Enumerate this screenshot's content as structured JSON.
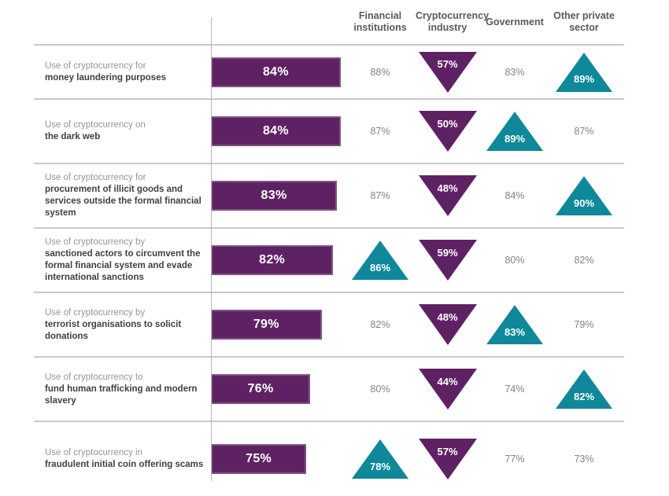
{
  "style": {
    "bar_color": "#5E2264",
    "up_marker_color": "#0F8899",
    "down_marker_color": "#5E2264",
    "value_text_color": "#808285",
    "header_text_color": "#58595B"
  },
  "chart_data": {
    "type": "table",
    "title": "",
    "columns": [
      "Financial institutions",
      "Cryptocurrency industry",
      "Government",
      "Other private sector"
    ],
    "marker_legend": {
      "up": "teal upward triangle",
      "down": "purple downward triangle",
      "none": "plain value"
    },
    "rows": [
      {
        "label_line1": "Use of cryptocurrency for",
        "label_bold": "money laundering purposes",
        "bar_value": 84,
        "bar_label": "84%",
        "cells": [
          {
            "value": "88%",
            "marker": "none"
          },
          {
            "value": "57%",
            "marker": "down"
          },
          {
            "value": "83%",
            "marker": "none"
          },
          {
            "value": "89%",
            "marker": "up"
          }
        ]
      },
      {
        "label_line1": "Use of cryptocurrency on",
        "label_bold": "the dark web",
        "bar_value": 84,
        "bar_label": "84%",
        "cells": [
          {
            "value": "87%",
            "marker": "none"
          },
          {
            "value": "50%",
            "marker": "down"
          },
          {
            "value": "89%",
            "marker": "up"
          },
          {
            "value": "87%",
            "marker": "none"
          }
        ]
      },
      {
        "label_line1": "Use of cryptocurrency for",
        "label_bold": "procurement of illicit goods and services outside the formal financial system",
        "bar_value": 83,
        "bar_label": "83%",
        "cells": [
          {
            "value": "87%",
            "marker": "none"
          },
          {
            "value": "48%",
            "marker": "down"
          },
          {
            "value": "84%",
            "marker": "none"
          },
          {
            "value": "90%",
            "marker": "up"
          }
        ]
      },
      {
        "label_line1": "Use of cryptocurrency by",
        "label_bold": "sanctioned actors to circumvent the formal financial system and evade international sanctions",
        "bar_value": 82,
        "bar_label": "82%",
        "cells": [
          {
            "value": "86%",
            "marker": "up"
          },
          {
            "value": "59%",
            "marker": "down"
          },
          {
            "value": "80%",
            "marker": "none"
          },
          {
            "value": "82%",
            "marker": "none"
          }
        ]
      },
      {
        "label_line1": "Use of cryptocurrency by",
        "label_bold": "terrorist organisations to solicit donations",
        "bar_value": 79,
        "bar_label": "79%",
        "cells": [
          {
            "value": "82%",
            "marker": "none"
          },
          {
            "value": "48%",
            "marker": "down"
          },
          {
            "value": "83%",
            "marker": "up"
          },
          {
            "value": "79%",
            "marker": "none"
          }
        ]
      },
      {
        "label_line1": "Use of cryptocurrency to",
        "label_bold": "fund human trafficking and modern slavery",
        "bar_value": 76,
        "bar_label": "76%",
        "cells": [
          {
            "value": "80%",
            "marker": "none"
          },
          {
            "value": "44%",
            "marker": "down"
          },
          {
            "value": "74%",
            "marker": "none"
          },
          {
            "value": "82%",
            "marker": "up"
          }
        ]
      },
      {
        "label_line1": "Use of cryptocurrency in",
        "label_bold": "fraudulent initial coin offering scams",
        "bar_value": 75,
        "bar_label": "75%",
        "cells": [
          {
            "value": "78%",
            "marker": "up"
          },
          {
            "value": "57%",
            "marker": "down"
          },
          {
            "value": "77%",
            "marker": "none"
          },
          {
            "value": "73%",
            "marker": "none"
          }
        ]
      }
    ]
  }
}
